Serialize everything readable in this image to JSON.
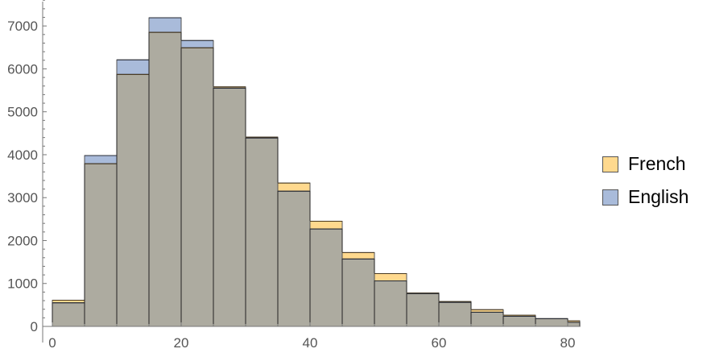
{
  "chart_data": {
    "type": "bar",
    "subtype": "histogram-overlay",
    "title": "",
    "xlabel": "",
    "ylabel": "",
    "bin_width": 5,
    "bin_starts": [
      0,
      5,
      10,
      15,
      20,
      25,
      30,
      35,
      40,
      45,
      50,
      55,
      60,
      65,
      70,
      75,
      80
    ],
    "series": [
      {
        "name": "French",
        "color": "#FFD98E",
        "values": [
          610,
          3790,
          5870,
          6850,
          6490,
          5580,
          4410,
          3340,
          2450,
          1720,
          1230,
          780,
          580,
          390,
          260,
          180,
          130
        ]
      },
      {
        "name": "English",
        "color": "#A9BBDA",
        "values": [
          550,
          3980,
          6210,
          7190,
          6660,
          5550,
          4390,
          3150,
          2270,
          1570,
          1060,
          765,
          560,
          330,
          235,
          180,
          95
        ]
      }
    ],
    "overlap_color": "#ADABA0",
    "xlim": [
      -1.5,
      82
    ],
    "ylim": [
      0,
      7600
    ],
    "xticks": [
      "0",
      "20",
      "40",
      "60",
      "80"
    ],
    "yticks": [
      "0",
      "1000",
      "2000",
      "3000",
      "4000",
      "5000",
      "6000",
      "7000"
    ],
    "grid": false,
    "legend_position": "right"
  }
}
